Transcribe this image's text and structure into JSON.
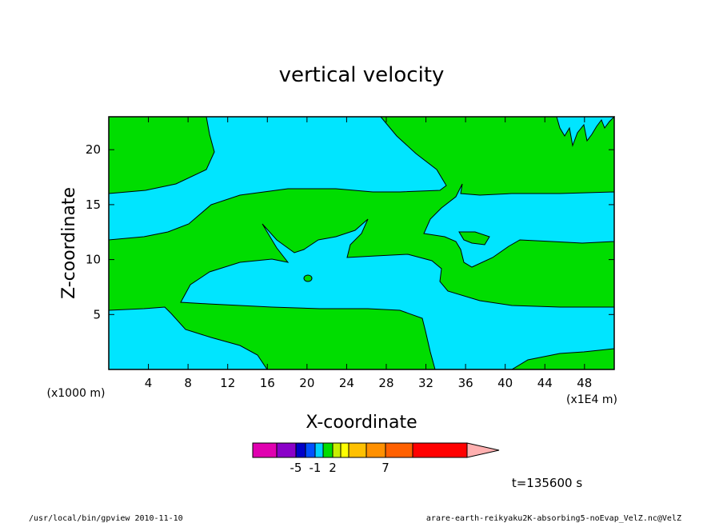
{
  "chart_data": {
    "type": "heatmap",
    "title": "vertical velocity",
    "xlabel": "X-coordinate",
    "ylabel": "Z-coordinate",
    "x_unit": "(x1E4 m)",
    "y_unit": "(x1000 m)",
    "xlim": [
      0,
      51
    ],
    "ylim": [
      0,
      23
    ],
    "x_ticks": [
      4,
      8,
      12,
      16,
      20,
      24,
      28,
      32,
      36,
      40,
      44,
      48
    ],
    "y_ticks": [
      5,
      10,
      15,
      20
    ],
    "region_colors": {
      "negative": "#00e5ff",
      "positive": "#00dd00"
    },
    "colorbar": {
      "colors": [
        "#e000b0",
        "#8a00c8",
        "#0000c8",
        "#0050ff",
        "#00d0ff",
        "#00dd00",
        "#c8ee00",
        "#ffff00",
        "#ffc000",
        "#ff9000",
        "#ff6000",
        "#ff0000",
        "#ff8080",
        "#ffb0b0"
      ],
      "labels": [
        {
          "text": "-5",
          "index": 2
        },
        {
          "text": "-1",
          "index": 4
        },
        {
          "text": "2",
          "index": 6
        },
        {
          "text": "7",
          "index": 10
        }
      ]
    },
    "time_label": "t=135600 s"
  },
  "footer": {
    "left": "/usr/local/bin/gpview  2010-11-10",
    "right": "arare-earth-reikyaku2K-absorbing5-noEvap_VelZ.nc@VelZ"
  }
}
